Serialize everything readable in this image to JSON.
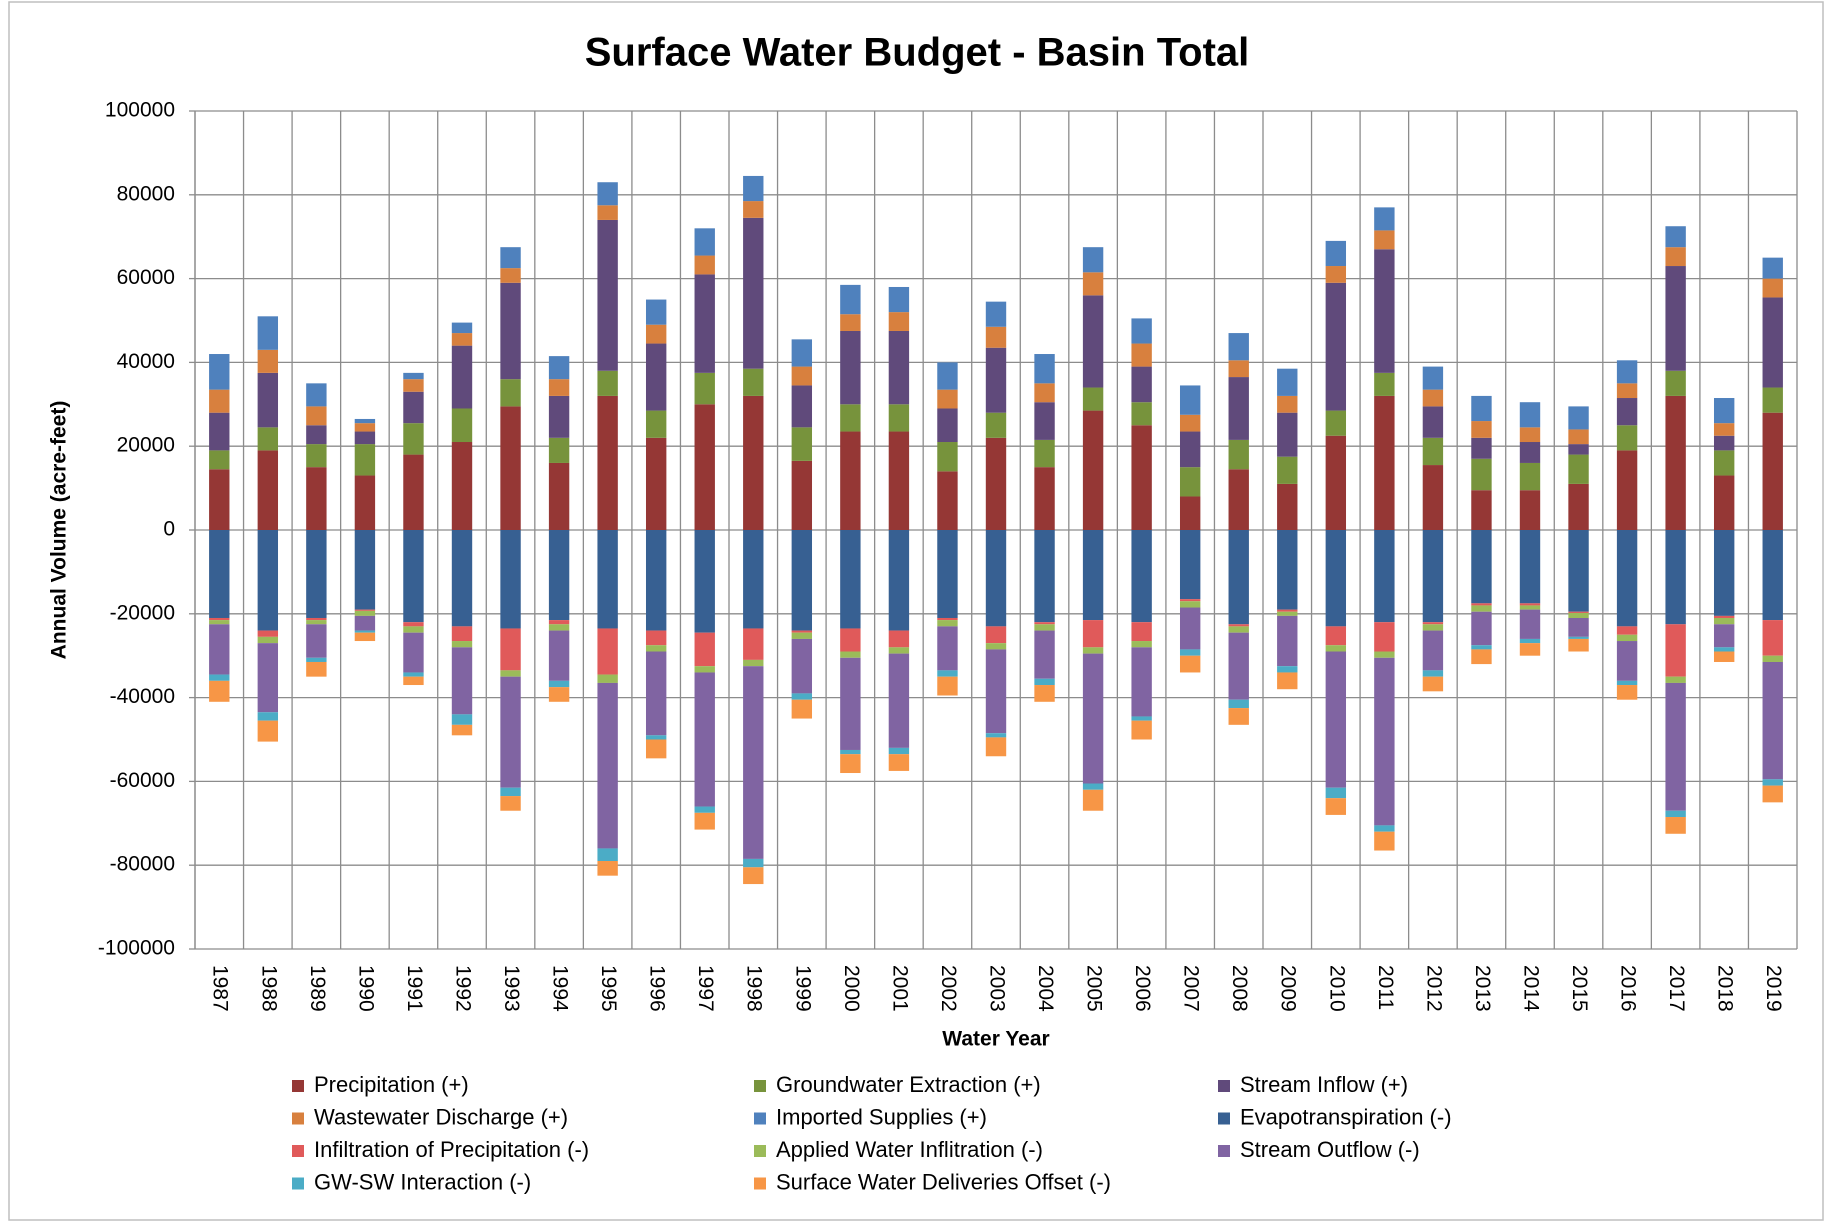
{
  "chart_data": {
    "type": "stacked_bar",
    "title": "Surface Water Budget - Basin Total",
    "x_label": "Water Year",
    "y_label": "Annual Volume (acre-feet)",
    "categories": [
      "1987",
      "1988",
      "1989",
      "1990",
      "1991",
      "1992",
      "1993",
      "1994",
      "1995",
      "1996",
      "1997",
      "1998",
      "1999",
      "2000",
      "2001",
      "2002",
      "2003",
      "2004",
      "2005",
      "2006",
      "2007",
      "2008",
      "2009",
      "2010",
      "2011",
      "2012",
      "2013",
      "2014",
      "2015",
      "2016",
      "2017",
      "2018",
      "2019"
    ],
    "ylim": [
      -100000,
      100000
    ],
    "yticks": [
      -100000,
      -80000,
      -60000,
      -40000,
      -20000,
      0,
      20000,
      40000,
      60000,
      80000,
      100000
    ],
    "grid": true,
    "legend": "bottom",
    "series": [
      {
        "name": "Precipitation (+)",
        "color": "#953735",
        "values": [
          14500,
          19000,
          15000,
          13000,
          18000,
          21000,
          29500,
          16000,
          32000,
          22000,
          30000,
          32000,
          16500,
          23500,
          23500,
          14000,
          22000,
          15000,
          28500,
          25000,
          8000,
          14500,
          11000,
          22500,
          32000,
          15500,
          9500,
          9500,
          11000,
          19000,
          32000,
          13000,
          28000
        ]
      },
      {
        "name": "Groundwater Extraction (+)",
        "color": "#77933c",
        "values": [
          4500,
          5500,
          5500,
          7500,
          7500,
          8000,
          6500,
          6000,
          6000,
          6500,
          7500,
          6500,
          8000,
          6500,
          6500,
          7000,
          6000,
          6500,
          5500,
          5500,
          7000,
          7000,
          6500,
          6000,
          5500,
          6500,
          7500,
          6500,
          7000,
          6000,
          6000,
          6000,
          6000
        ]
      },
      {
        "name": "Stream Inflow (+)",
        "color": "#604a7b",
        "values": [
          9000,
          13000,
          4500,
          3000,
          7500,
          15000,
          23000,
          10000,
          36000,
          16000,
          23500,
          36000,
          10000,
          17500,
          17500,
          8000,
          15500,
          9000,
          22000,
          8500,
          8500,
          15000,
          10500,
          30500,
          29500,
          7500,
          5000,
          5000,
          2500,
          6500,
          25000,
          3500,
          21500
        ]
      },
      {
        "name": "Wastewater Discharge (+)",
        "color": "#d8803e",
        "values": [
          5500,
          5500,
          4500,
          2000,
          3000,
          3000,
          3500,
          4000,
          3500,
          4500,
          4500,
          4000,
          4500,
          4000,
          4500,
          4500,
          5000,
          4500,
          5500,
          5500,
          4000,
          4000,
          4000,
          4000,
          4500,
          4000,
          4000,
          3500,
          3500,
          3500,
          4500,
          3000,
          4500
        ]
      },
      {
        "name": "Imported Supplies (+)",
        "color": "#4f81bd",
        "values": [
          8500,
          8000,
          5500,
          1000,
          1500,
          2500,
          5000,
          5500,
          5500,
          6000,
          6500,
          6000,
          6500,
          7000,
          6000,
          6500,
          6000,
          7000,
          6000,
          6000,
          7000,
          6500,
          6500,
          6000,
          5500,
          5500,
          6000,
          6000,
          5500,
          5500,
          5000,
          6000,
          5000
        ]
      },
      {
        "name": "Evapotranspiration (-)",
        "color": "#376092",
        "values": [
          -21000,
          -24000,
          -21000,
          -19000,
          -22000,
          -23000,
          -23500,
          -21500,
          -23500,
          -24000,
          -24500,
          -23500,
          -24000,
          -23500,
          -24000,
          -21000,
          -23000,
          -22000,
          -21500,
          -22000,
          -16500,
          -22500,
          -19000,
          -23000,
          -22000,
          -22000,
          -17500,
          -17500,
          -19500,
          -23000,
          -22500,
          -20500,
          -21500
        ]
      },
      {
        "name": "Infiltration of Precipitation (-)",
        "color": "#e05a5a",
        "values": [
          -500,
          -1500,
          -500,
          -300,
          -1000,
          -3500,
          -10000,
          -1000,
          -11000,
          -3500,
          -8000,
          -7500,
          -500,
          -5500,
          -4000,
          -500,
          -4000,
          -500,
          -6500,
          -4500,
          -500,
          -500,
          -500,
          -4500,
          -7000,
          -500,
          -500,
          -500,
          -300,
          -2000,
          -12500,
          -500,
          -8500
        ]
      },
      {
        "name": "Applied Water Inflitration (-)",
        "color": "#9bbb59",
        "values": [
          -1000,
          -1500,
          -1000,
          -1200,
          -1500,
          -1500,
          -1500,
          -1500,
          -2000,
          -1500,
          -1500,
          -1500,
          -1500,
          -1500,
          -1500,
          -1500,
          -1500,
          -1500,
          -1500,
          -1500,
          -1500,
          -1500,
          -1000,
          -1500,
          -1500,
          -1500,
          -1500,
          -1000,
          -1200,
          -1500,
          -1500,
          -1500,
          -1500
        ]
      },
      {
        "name": "Stream Outflow (-)",
        "color": "#8064a2",
        "values": [
          -12000,
          -16500,
          -8000,
          -3500,
          -9500,
          -16000,
          -26500,
          -12000,
          -39500,
          -20000,
          -32000,
          -46000,
          -13000,
          -22000,
          -22500,
          -10500,
          -20000,
          -11500,
          -31000,
          -16500,
          -10000,
          -16000,
          -12000,
          -32500,
          -40000,
          -9500,
          -8000,
          -7000,
          -4500,
          -9500,
          -30500,
          -5500,
          -28000
        ]
      },
      {
        "name": "GW-SW Interaction (-)",
        "color": "#4bacc6",
        "values": [
          -1500,
          -2000,
          -1000,
          -500,
          -1000,
          -2500,
          -2000,
          -1500,
          -3000,
          -1000,
          -1500,
          -2000,
          -1500,
          -1000,
          -1500,
          -1500,
          -1000,
          -1500,
          -1500,
          -1000,
          -1500,
          -2000,
          -1500,
          -2500,
          -1500,
          -1500,
          -1000,
          -1000,
          -500,
          -1000,
          -1500,
          -1000,
          -1500
        ]
      },
      {
        "name": "Surface Water Deliveries Offset (-)",
        "color": "#f79646",
        "values": [
          -5000,
          -5000,
          -3500,
          -2000,
          -2000,
          -2500,
          -3500,
          -3500,
          -3500,
          -4500,
          -4000,
          -4000,
          -4500,
          -4500,
          -4000,
          -4500,
          -4500,
          -4000,
          -5000,
          -4500,
          -4000,
          -4000,
          -4000,
          -4000,
          -4500,
          -3500,
          -3500,
          -3000,
          -3000,
          -3500,
          -4000,
          -2500,
          -4000
        ]
      }
    ]
  }
}
